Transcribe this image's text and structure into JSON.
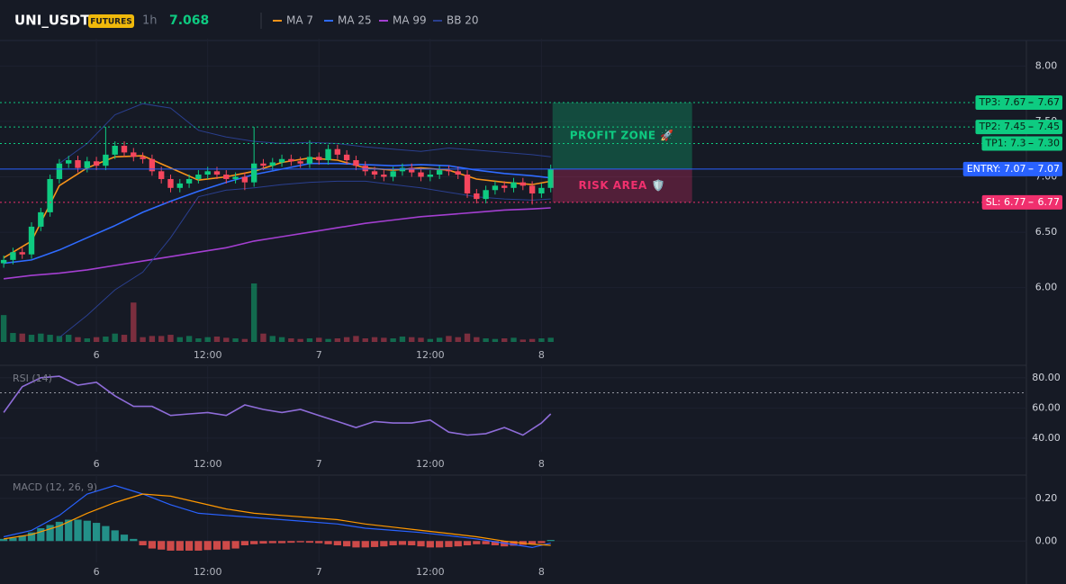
{
  "header": {
    "symbol": "UNI_USDT",
    "badge": "FUTURES",
    "interval": "1h",
    "price": 7.068
  },
  "chart_data": [
    {
      "type": "candlestick",
      "x": [
        -10,
        -9,
        -8,
        -7,
        -6,
        -5,
        -4,
        -3,
        -2,
        -1,
        0,
        1,
        2,
        3,
        4,
        5,
        6,
        7,
        8,
        9,
        10,
        11,
        12,
        13,
        14,
        15,
        16,
        17,
        18,
        19,
        20,
        21,
        22,
        23,
        24,
        25,
        26,
        27,
        28,
        29,
        30,
        31,
        32,
        33,
        34,
        35,
        36,
        37,
        38,
        39,
        40,
        41,
        42,
        43,
        44,
        45,
        46,
        47,
        48,
        49
      ],
      "open": [
        6.22,
        6.25,
        6.32,
        6.3,
        6.55,
        6.68,
        6.98,
        7.12,
        7.15,
        7.08,
        7.14,
        7.1,
        7.2,
        7.28,
        7.22,
        7.18,
        7.16,
        7.05,
        6.98,
        6.9,
        6.94,
        6.98,
        7.02,
        7.05,
        7.02,
        6.98,
        7.0,
        6.95,
        7.12,
        7.1,
        7.13,
        7.16,
        7.14,
        7.12,
        7.18,
        7.15,
        7.25,
        7.2,
        7.15,
        7.1,
        7.05,
        7.02,
        7.0,
        7.05,
        7.08,
        7.04,
        7.0,
        7.02,
        7.06,
        7.05,
        7.02,
        6.85,
        6.8,
        6.88,
        6.92,
        6.9,
        6.95,
        6.92,
        6.85,
        6.9
      ],
      "high": [
        6.29,
        6.36,
        6.36,
        6.59,
        6.72,
        7.02,
        7.16,
        7.19,
        7.19,
        7.18,
        7.18,
        7.45,
        7.32,
        7.32,
        7.26,
        7.22,
        7.2,
        7.09,
        7.02,
        6.98,
        7.02,
        7.06,
        7.09,
        7.09,
        7.06,
        7.04,
        7.04,
        7.45,
        7.16,
        7.17,
        7.2,
        7.2,
        7.18,
        7.33,
        7.22,
        7.29,
        7.29,
        7.24,
        7.19,
        7.14,
        7.09,
        7.06,
        7.09,
        7.12,
        7.12,
        7.08,
        7.06,
        7.1,
        7.1,
        7.09,
        7.06,
        6.89,
        6.92,
        6.96,
        6.96,
        6.99,
        6.99,
        6.96,
        6.94,
        7.11
      ],
      "low": [
        6.18,
        6.21,
        6.26,
        6.26,
        6.51,
        6.64,
        6.94,
        7.08,
        7.04,
        7.04,
        7.06,
        7.06,
        7.16,
        7.18,
        7.14,
        7.12,
        7.01,
        6.94,
        6.86,
        6.86,
        6.9,
        6.94,
        6.98,
        6.98,
        6.94,
        6.94,
        6.88,
        6.91,
        7.06,
        7.06,
        7.09,
        7.1,
        7.08,
        7.08,
        7.11,
        7.11,
        7.16,
        7.11,
        7.06,
        7.01,
        6.98,
        6.96,
        6.96,
        7.01,
        7.0,
        6.96,
        6.96,
        6.98,
        7.01,
        6.98,
        6.81,
        6.76,
        6.76,
        6.84,
        6.86,
        6.86,
        6.88,
        6.75,
        6.81,
        6.86
      ],
      "close": [
        6.25,
        6.32,
        6.3,
        6.55,
        6.68,
        6.98,
        7.12,
        7.15,
        7.08,
        7.14,
        7.1,
        7.2,
        7.28,
        7.22,
        7.18,
        7.16,
        7.05,
        6.98,
        6.9,
        6.94,
        6.98,
        7.02,
        7.05,
        7.02,
        6.98,
        7.0,
        6.95,
        7.12,
        7.1,
        7.13,
        7.16,
        7.14,
        7.12,
        7.18,
        7.15,
        7.25,
        7.2,
        7.15,
        7.1,
        7.05,
        7.02,
        7.0,
        7.05,
        7.08,
        7.04,
        7.0,
        7.02,
        7.06,
        7.05,
        7.02,
        6.85,
        6.8,
        6.88,
        6.92,
        6.9,
        6.95,
        6.92,
        6.85,
        6.9,
        7.07
      ],
      "volume": [
        45,
        15,
        14,
        12,
        14,
        12,
        10,
        12,
        8,
        6,
        8,
        9,
        14,
        12,
        66,
        8,
        10,
        10,
        12,
        8,
        10,
        6,
        8,
        9,
        7,
        6,
        5,
        98,
        14,
        10,
        8,
        6,
        5,
        6,
        7,
        5,
        6,
        8,
        10,
        6,
        8,
        7,
        6,
        9,
        8,
        7,
        5,
        7,
        10,
        8,
        14,
        8,
        6,
        5,
        6,
        7,
        4,
        5,
        6,
        7
      ],
      "up_color": "#0ecb81",
      "down_color": "#f6465d",
      "lines": [
        {
          "name": "MA 7",
          "color": "#f7931a",
          "x": [
            -10,
            -7,
            -4,
            -1,
            2,
            5,
            8,
            11,
            14,
            17,
            20,
            23,
            26,
            29,
            32,
            35,
            38,
            41,
            44,
            47,
            49
          ],
          "values": [
            6.27,
            6.42,
            6.92,
            7.08,
            7.18,
            7.19,
            7.08,
            6.97,
            7.0,
            7.05,
            7.13,
            7.17,
            7.15,
            7.08,
            7.06,
            7.08,
            7.06,
            6.98,
            6.95,
            6.93,
            6.96
          ]
        },
        {
          "name": "MA 25",
          "color": "#2f6bff",
          "x": [
            -10,
            -7,
            -4,
            -1,
            2,
            5,
            8,
            11,
            14,
            17,
            20,
            23,
            26,
            29,
            32,
            35,
            38,
            41,
            44,
            47,
            49
          ],
          "values": [
            6.22,
            6.25,
            6.34,
            6.45,
            6.56,
            6.68,
            6.78,
            6.87,
            6.95,
            7.02,
            7.07,
            7.12,
            7.12,
            7.11,
            7.1,
            7.11,
            7.1,
            7.06,
            7.03,
            7.01,
            6.99
          ]
        },
        {
          "name": "MA 99",
          "color": "#a43fd1",
          "x": [
            -10,
            -7,
            -4,
            -1,
            2,
            5,
            8,
            11,
            14,
            17,
            20,
            23,
            26,
            29,
            32,
            35,
            38,
            41,
            44,
            47,
            49
          ],
          "values": [
            6.08,
            6.11,
            6.13,
            6.16,
            6.2,
            6.24,
            6.28,
            6.32,
            6.36,
            6.42,
            6.46,
            6.5,
            6.54,
            6.58,
            6.61,
            6.64,
            6.66,
            6.68,
            6.7,
            6.71,
            6.72
          ]
        },
        {
          "name": "BB 20",
          "color": "#2a3f8f",
          "x": [
            -10,
            -7,
            -4,
            -1,
            2,
            5,
            8,
            11,
            14,
            17,
            20,
            23,
            26,
            29,
            32,
            35,
            38,
            41,
            44,
            47,
            49
          ],
          "upper": [
            null,
            null,
            7.12,
            7.3,
            7.56,
            7.66,
            7.62,
            7.42,
            7.36,
            7.32,
            7.3,
            7.31,
            7.3,
            7.27,
            7.25,
            7.23,
            7.26,
            7.24,
            7.22,
            7.2,
            7.18
          ],
          "lower": [
            null,
            null,
            5.55,
            5.75,
            5.98,
            6.14,
            6.45,
            6.82,
            6.88,
            6.9,
            6.93,
            6.95,
            6.96,
            6.96,
            6.93,
            6.9,
            6.86,
            6.82,
            6.8,
            6.79,
            6.8
          ]
        }
      ],
      "levels": [
        {
          "name": "TP3: 7.67",
          "value": 7.67,
          "color": "#0ecb81",
          "style": "dotted"
        },
        {
          "name": "TP2: 7.45",
          "value": 7.45,
          "color": "#0ecb81",
          "style": "dotted"
        },
        {
          "name": "TP1: 7.3",
          "value": 7.3,
          "value_label": "7.30",
          "color": "#0ecb81",
          "style": "dotted"
        },
        {
          "name": "ENTRY: 7.07",
          "value": 7.07,
          "color": "#2962ff",
          "style": "solid"
        },
        {
          "name": "SL: 6.77",
          "value": 6.77,
          "color": "#f0306e",
          "style": "dotted"
        }
      ],
      "zones": [
        {
          "label": "PROFIT ZONE 🚀",
          "from": 7.07,
          "to": 7.67,
          "color": "#0ecb81"
        },
        {
          "label": "RISK AREA 🛡️",
          "from": 6.77,
          "to": 7.07,
          "color": "#f0306e"
        }
      ],
      "ylim": [
        5.51,
        8.23
      ],
      "yticks": [
        {
          "value": 8,
          "label": "8.00"
        },
        {
          "value": 7.5,
          "label": "7.50"
        },
        {
          "value": 7,
          "label": "7.00"
        },
        {
          "value": 6.5,
          "label": "6.50"
        },
        {
          "value": 6,
          "label": "6.00"
        }
      ],
      "xlim": [
        -10.4,
        100.3
      ],
      "xticks": [
        {
          "value": 0,
          "label": "6"
        },
        {
          "value": 12,
          "label": "12:00"
        },
        {
          "value": 24,
          "label": "7"
        },
        {
          "value": 36,
          "label": "12:00"
        },
        {
          "value": 48,
          "label": "8"
        }
      ],
      "grid": true
    },
    {
      "type": "line",
      "title": "RSI (14)",
      "color": "#8e6cd8",
      "x": [
        -10,
        -8,
        -6,
        -4,
        -2,
        0,
        2,
        4,
        6,
        8,
        10,
        12,
        14,
        16,
        18,
        20,
        22,
        24,
        26,
        28,
        30,
        32,
        34,
        36,
        38,
        40,
        42,
        44,
        46,
        48,
        49
      ],
      "values": [
        57,
        74,
        80,
        81,
        75,
        77,
        68,
        61,
        61,
        55,
        56,
        57,
        55,
        62,
        59,
        57,
        59,
        55,
        51,
        47,
        51,
        50,
        50,
        52,
        44,
        42,
        43,
        47,
        42,
        50,
        56
      ],
      "reference": 70,
      "ylim": [
        31,
        87
      ],
      "yticks": [
        {
          "value": 80,
          "label": "80.00"
        },
        {
          "value": 60,
          "label": "60.00"
        },
        {
          "value": 40,
          "label": "40.00"
        }
      ],
      "xlim": [
        -10.4,
        100.3
      ],
      "xticks": [
        {
          "value": 0,
          "label": "6"
        },
        {
          "value": 12,
          "label": "12:00"
        },
        {
          "value": 24,
          "label": "7"
        },
        {
          "value": 36,
          "label": "12:00"
        },
        {
          "value": 48,
          "label": "8"
        }
      ],
      "grid": true
    },
    {
      "type": "macd",
      "title": "MACD (12, 26, 9)",
      "x": [
        -10,
        -9,
        -8,
        -7,
        -6,
        -5,
        -4,
        -3,
        -2,
        -1,
        0,
        1,
        2,
        3,
        4,
        5,
        6,
        7,
        8,
        9,
        10,
        11,
        12,
        13,
        14,
        15,
        16,
        17,
        18,
        19,
        20,
        21,
        22,
        23,
        24,
        25,
        26,
        27,
        28,
        29,
        30,
        31,
        32,
        33,
        34,
        35,
        36,
        37,
        38,
        39,
        40,
        41,
        42,
        43,
        44,
        45,
        46,
        47,
        48,
        49
      ],
      "histogram": [
        0.01,
        0.015,
        0.025,
        0.04,
        0.06,
        0.075,
        0.09,
        0.1,
        0.1,
        0.095,
        0.085,
        0.07,
        0.05,
        0.03,
        0.01,
        -0.02,
        -0.035,
        -0.04,
        -0.045,
        -0.045,
        -0.045,
        -0.045,
        -0.042,
        -0.04,
        -0.04,
        -0.035,
        -0.02,
        -0.015,
        -0.012,
        -0.01,
        -0.01,
        -0.008,
        -0.006,
        -0.008,
        -0.01,
        -0.015,
        -0.02,
        -0.025,
        -0.03,
        -0.03,
        -0.028,
        -0.025,
        -0.02,
        -0.018,
        -0.02,
        -0.025,
        -0.03,
        -0.03,
        -0.028,
        -0.025,
        -0.02,
        -0.015,
        -0.015,
        -0.02,
        -0.025,
        -0.022,
        -0.018,
        -0.015,
        -0.01,
        0.005
      ],
      "positive_color": "#26a69a",
      "negative_color": "#ef5350",
      "lines": [
        {
          "color": "#2962ff",
          "x": [
            -10,
            -7,
            -4,
            -1,
            2,
            5,
            8,
            11,
            14,
            17,
            20,
            23,
            26,
            29,
            32,
            35,
            38,
            41,
            44,
            47,
            49
          ],
          "values": [
            0.02,
            0.05,
            0.12,
            0.22,
            0.26,
            0.22,
            0.17,
            0.13,
            0.12,
            0.11,
            0.1,
            0.09,
            0.08,
            0.06,
            0.05,
            0.04,
            0.025,
            0.01,
            -0.01,
            -0.03,
            -0.01
          ]
        },
        {
          "color": "#ff9800",
          "x": [
            -10,
            -7,
            -4,
            -1,
            2,
            5,
            8,
            11,
            14,
            17,
            20,
            23,
            26,
            29,
            32,
            35,
            38,
            41,
            44,
            47,
            49
          ],
          "values": [
            0.01,
            0.03,
            0.07,
            0.13,
            0.18,
            0.22,
            0.21,
            0.18,
            0.15,
            0.13,
            0.12,
            0.11,
            0.1,
            0.08,
            0.065,
            0.05,
            0.035,
            0.02,
            0.0,
            -0.015,
            -0.02
          ]
        }
      ],
      "ylim": [
        -0.1,
        0.3
      ],
      "yticks": [
        {
          "value": 0.2,
          "label": "0.20"
        },
        {
          "value": 0,
          "label": "0.00"
        }
      ],
      "xlim": [
        -10.4,
        100.3
      ],
      "xticks": [
        {
          "value": 0,
          "label": "6"
        },
        {
          "value": 12,
          "label": "12:00"
        },
        {
          "value": 24,
          "label": "7"
        },
        {
          "value": 36,
          "label": "12:00"
        },
        {
          "value": 48,
          "label": "8"
        }
      ],
      "grid": true
    }
  ]
}
